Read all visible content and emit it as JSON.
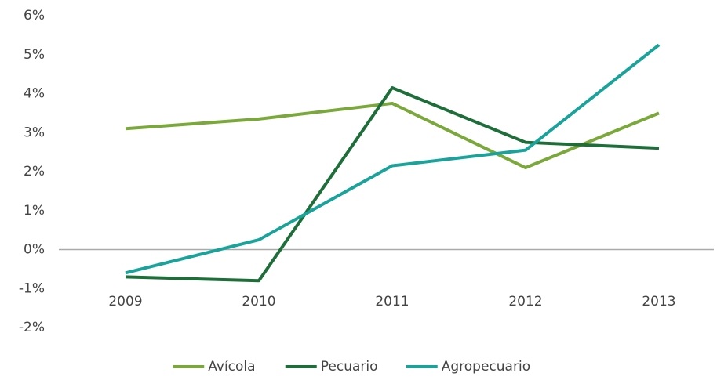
{
  "chart_data": {
    "type": "line",
    "categories": [
      "2009",
      "2010",
      "2011",
      "2012",
      "2013"
    ],
    "series": [
      {
        "name": "Avícola",
        "color": "#7aa83a",
        "values": [
          3.1,
          3.35,
          3.75,
          2.1,
          3.5
        ]
      },
      {
        "name": "Pecuario",
        "color": "#1e6e3a",
        "values": [
          -0.7,
          -0.8,
          4.15,
          2.75,
          2.6
        ]
      },
      {
        "name": "Agropecuario",
        "color": "#1aa39a",
        "values": [
          -0.6,
          0.25,
          2.15,
          2.55,
          5.25
        ]
      }
    ],
    "ylim": [
      -2,
      6
    ],
    "yticks": [
      {
        "value": 6,
        "label": "6%"
      },
      {
        "value": 5,
        "label": "5%"
      },
      {
        "value": 4,
        "label": "4%"
      },
      {
        "value": 3,
        "label": "3%"
      },
      {
        "value": 2,
        "label": "2%"
      },
      {
        "value": 1,
        "label": "1%"
      },
      {
        "value": 0,
        "label": "0%"
      },
      {
        "value": -1,
        "label": "-1%"
      },
      {
        "value": -2,
        "label": "-2%"
      }
    ],
    "grid": false,
    "legend": "bottom"
  }
}
